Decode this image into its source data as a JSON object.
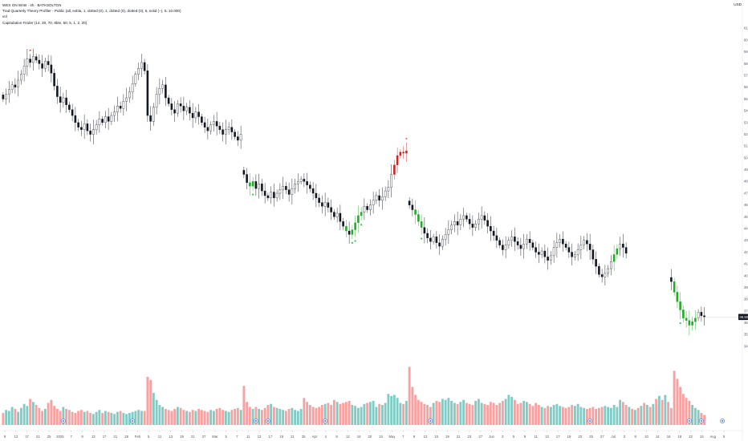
{
  "legend": {
    "symbol_line": "WEX ON WAB · 4h · BATKSDLTGN",
    "indicator1": "Trad Quarterly Theory Profiler - Public (all, exbla, 1, dotted (0), 1, dotted (0), dotted (0), 5, solid (−), 5, 10.000)",
    "indicator2": "vol",
    "indicator3": "Capitulation Finder (14, 30, 70, 8ble, 50, 5, 1, 2, 20)"
  },
  "top_right_label": "USD",
  "colors": {
    "candle_outline": "#131722",
    "signal_green": "#22ab26",
    "signal_red": "#c62828",
    "volume_up": "#80cbc4",
    "volume_down": "#f7a1a1",
    "marker_green": "#2ecc40",
    "marker_red": "#e53935",
    "circle_marker": "#5b7fe0",
    "last_price_badge": "#131722"
  },
  "price_axis_ticks": [
    "61.00",
    "60.00",
    "59.00",
    "58.00",
    "57.00",
    "56.00",
    "55.00",
    "54.00",
    "53.00",
    "52.00",
    "51.00",
    "50.00",
    "49.00",
    "48.00",
    "47.00",
    "46.00",
    "45.00",
    "44.00",
    "43.00",
    "42.00",
    "41.00",
    "40.00",
    "39.00",
    "38.00",
    "37.00",
    "36.00",
    "35.00",
    "34.00"
  ],
  "last_price_badge": "36.50",
  "time_axis_ticks": [
    "9",
    "13",
    "17",
    "21",
    "25",
    "2025",
    "7",
    "9",
    "13",
    "17",
    "21",
    "28",
    "Feb",
    "5",
    "11",
    "13",
    "19",
    "21",
    "27",
    "Mar",
    "5",
    "7",
    "11",
    "13",
    "17",
    "19",
    "21",
    "25",
    "Apr",
    "4",
    "8",
    "12",
    "16",
    "20",
    "24",
    "May",
    "7",
    "9",
    "13",
    "15",
    "19",
    "21",
    "23",
    "27",
    "Jun",
    "3",
    "5",
    "9",
    "11",
    "13",
    "17",
    "19",
    "23",
    "25",
    "27",
    "Jul",
    "3",
    "8",
    "10",
    "14",
    "16",
    "18",
    "22",
    "24",
    "Aug",
    "5"
  ],
  "chart_data": {
    "type": "candlestick",
    "segments": [
      {
        "start_index": 0,
        "closes": [
          55.0,
          55.4,
          55.8,
          56.2,
          56.0,
          56.6,
          57.1,
          57.8,
          58.4,
          58.1,
          58.6,
          58.3,
          58.0,
          57.6,
          58.2,
          57.9,
          57.2,
          56.1,
          55.2,
          54.7,
          55.1,
          54.5,
          54.1,
          53.6,
          53.0,
          52.6,
          52.4,
          52.9,
          52.3,
          52.0,
          52.4,
          52.8,
          53.3,
          53.0,
          53.5,
          53.1,
          53.6,
          53.9,
          54.4,
          54.2,
          54.8,
          55.1,
          55.6,
          56.3,
          57.1,
          57.6,
          58.1,
          57.4,
          53.6,
          53.1,
          54.3,
          55.4,
          55.9,
          56.2,
          55.1,
          54.6,
          54.1,
          53.8,
          54.6,
          54.4,
          54.0,
          54.3,
          53.8,
          53.4,
          53.9,
          53.5,
          53.0,
          52.6,
          52.3,
          52.8,
          53.1,
          52.7,
          52.4,
          52.0,
          52.4,
          52.6,
          52.2,
          51.8,
          51.5,
          52.0
        ]
      },
      {
        "start_index": 80,
        "closes": [
          48.6,
          47.9,
          47.6,
          48.0,
          47.4,
          47.8,
          47.2,
          46.8,
          46.6,
          47.1,
          46.6,
          47.0,
          47.3,
          47.6,
          47.3,
          46.9,
          47.4,
          47.8,
          48.0,
          48.2,
          48.0,
          47.7,
          47.4,
          47.0,
          46.6,
          46.2,
          45.9,
          46.2,
          45.8,
          45.4,
          45.0,
          45.3,
          44.6,
          44.2,
          43.8,
          43.5,
          43.9,
          44.5,
          45.1,
          45.4,
          45.9,
          45.6,
          46.0,
          46.4,
          46.8,
          46.4,
          46.7,
          47.2,
          47.5,
          48.6,
          49.4,
          50.2,
          50.5,
          50.4,
          50.6
        ]
      },
      {
        "start_index": 135,
        "closes": [
          46.0,
          45.6,
          45.2,
          44.6,
          44.1,
          43.6,
          43.2,
          42.9,
          43.3,
          42.8,
          42.5,
          43.1,
          43.5,
          43.9,
          44.3,
          44.6,
          44.3,
          44.8,
          45.1,
          44.8,
          44.4,
          44.1,
          44.4,
          44.8,
          45.1,
          44.7,
          44.2,
          43.8,
          43.4,
          43.0,
          42.6,
          42.2,
          42.6,
          43.0,
          43.3,
          42.9,
          42.6,
          42.3,
          42.7,
          43.1,
          42.8,
          42.4,
          42.0,
          41.8,
          42.1,
          41.6,
          41.3,
          41.7,
          42.4,
          42.8,
          43.1,
          42.7,
          42.4,
          42.0,
          41.6,
          41.8,
          42.2,
          42.6,
          43.0,
          42.7,
          42.2,
          41.4,
          40.8,
          40.1,
          39.9,
          40.2,
          40.6,
          41.2,
          41.8,
          42.3,
          42.7,
          42.4,
          41.9
        ]
      },
      {
        "start_index": 222,
        "closes": [
          39.5,
          38.6,
          37.8,
          37.1,
          36.4,
          36.2,
          35.8,
          36.1,
          36.4,
          36.9,
          36.6,
          36.5
        ]
      }
    ],
    "signal_candles_green": [
      82,
      83,
      114,
      116,
      117,
      118,
      119,
      137,
      138,
      139,
      203,
      204,
      223,
      224,
      225,
      226,
      227,
      228,
      229,
      230
    ],
    "signal_candles_red": [
      130,
      131,
      132,
      133,
      134
    ],
    "x_range": [
      0,
      240
    ],
    "y_range": [
      34,
      61.5
    ],
    "volume": {
      "scale_max": 100,
      "values": [
        12,
        15,
        14,
        18,
        16,
        13,
        17,
        21,
        19,
        26,
        23,
        20,
        17,
        14,
        16,
        22,
        25,
        19,
        16,
        14,
        18,
        16,
        15,
        13,
        12,
        14,
        15,
        13,
        14,
        12,
        11,
        13,
        15,
        12,
        14,
        13,
        12,
        11,
        13,
        14,
        12,
        11,
        12,
        13,
        14,
        15,
        14,
        14,
        48,
        45,
        32,
        25,
        20,
        18,
        16,
        15,
        14,
        16,
        18,
        17,
        15,
        14,
        13,
        15,
        14,
        16,
        15,
        14,
        13,
        15,
        14,
        16,
        17,
        15,
        14,
        13,
        15,
        16,
        17,
        15,
        39,
        23,
        18,
        16,
        18,
        16,
        15,
        17,
        20,
        21,
        18,
        17,
        16,
        15,
        14,
        16,
        17,
        15,
        14,
        16,
        27,
        23,
        20,
        18,
        17,
        18,
        20,
        21,
        22,
        20,
        25,
        23,
        21,
        22,
        23,
        24,
        20,
        19,
        17,
        18,
        21,
        22,
        23,
        24,
        18,
        21,
        20,
        22,
        31,
        29,
        30,
        27,
        22,
        21,
        24,
        58,
        38,
        30,
        25,
        23,
        21,
        20,
        18,
        22,
        24,
        23,
        26,
        25,
        27,
        24,
        22,
        21,
        23,
        25,
        22,
        21,
        20,
        24,
        26,
        22,
        21,
        20,
        23,
        22,
        20,
        22,
        24,
        26,
        30,
        28,
        25,
        21,
        22,
        24,
        23,
        21,
        19,
        22,
        20,
        18,
        17,
        19,
        18,
        20,
        21,
        19,
        18,
        17,
        18,
        20,
        19,
        21,
        18,
        17,
        16,
        17,
        18,
        16,
        17,
        18,
        19,
        18,
        17,
        20,
        18,
        25,
        23,
        20,
        18,
        16,
        15,
        17,
        19,
        22,
        20,
        18,
        21,
        26,
        29,
        25,
        30,
        23,
        17,
        54,
        46,
        38,
        31,
        27,
        24,
        20,
        17,
        15,
        12,
        10
      ]
    },
    "markers_green_below": [
      83,
      116,
      117,
      119,
      139,
      225
    ],
    "markers_red_above": [
      9,
      134
    ],
    "circle_markers_at": [
      20,
      43,
      84,
      88,
      107,
      142,
      195,
      228,
      232,
      239
    ]
  }
}
